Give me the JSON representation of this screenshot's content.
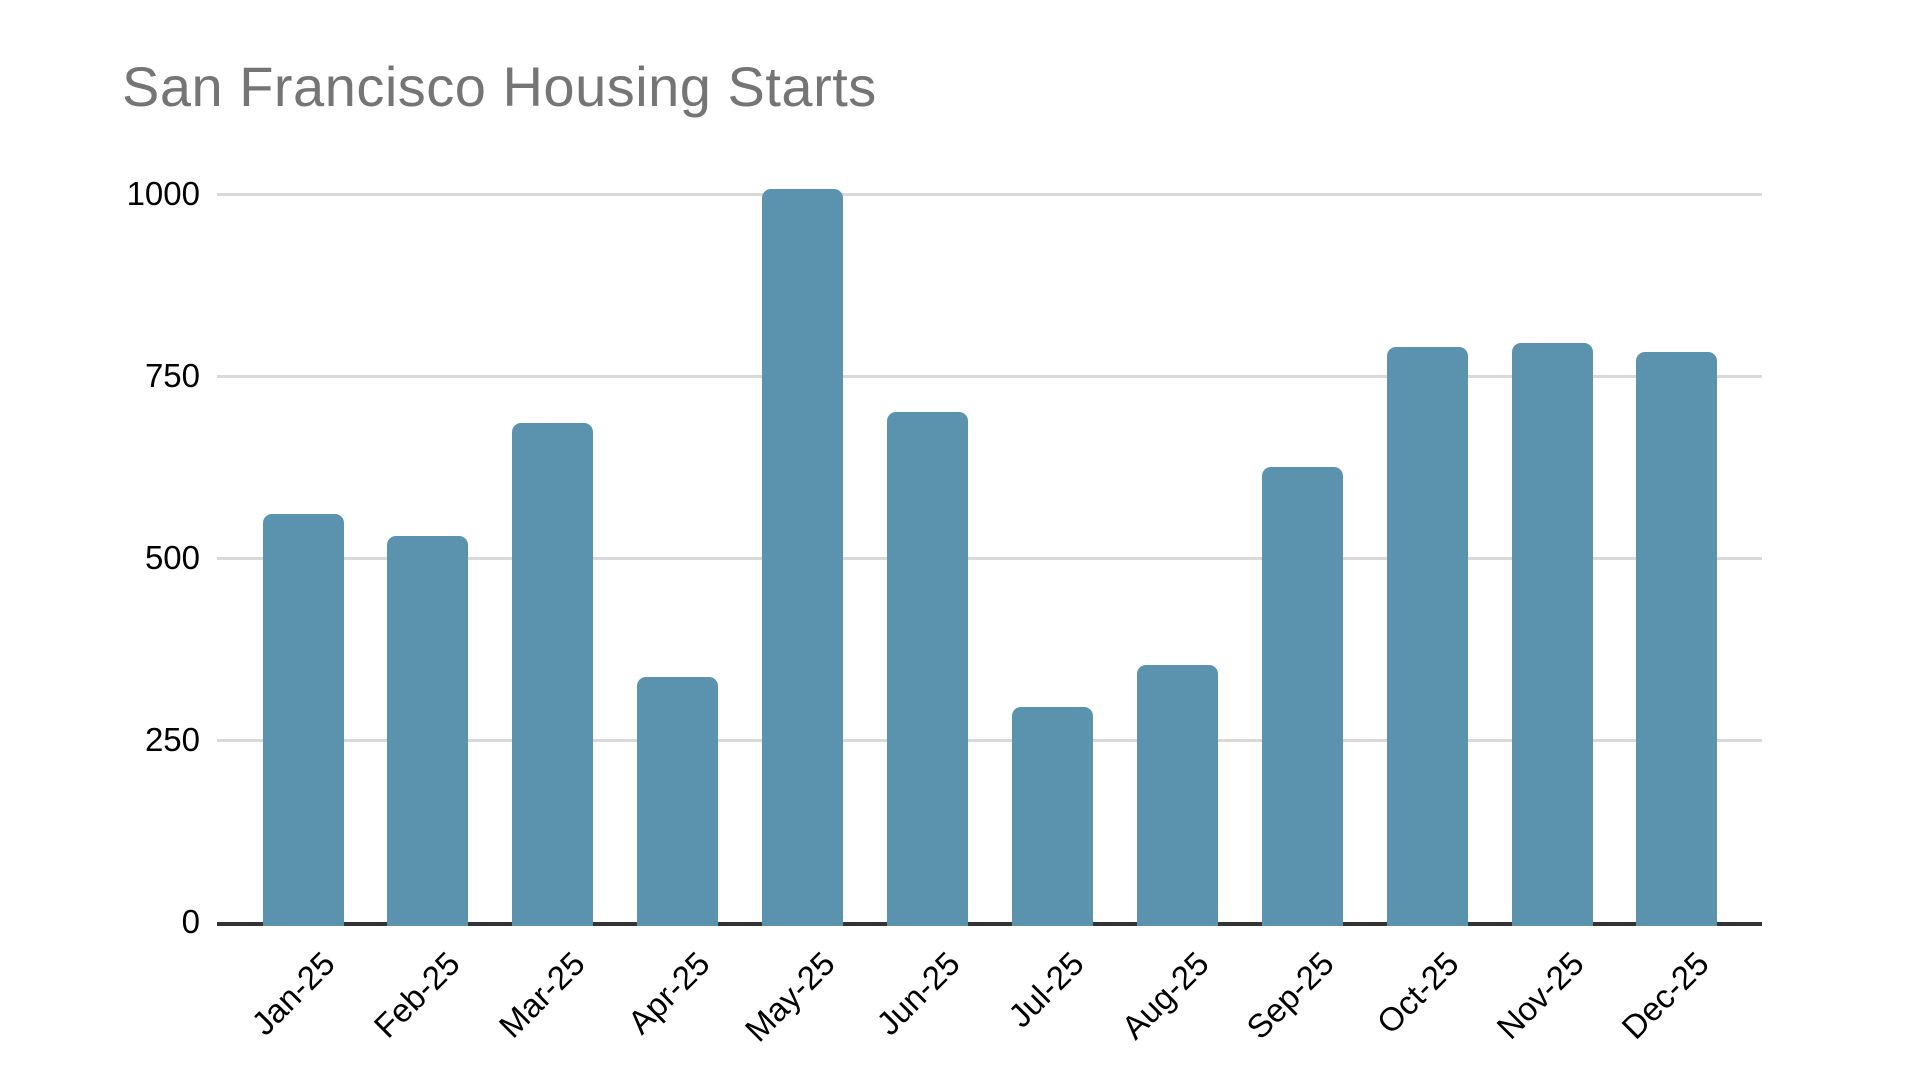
{
  "window": {
    "background": "#ffffff"
  },
  "chart": {
    "title": "San Francisco Housing Starts",
    "colors": {
      "title": "#757575",
      "bar": "#5b92ae",
      "gridline": "#d9d9d9",
      "axis_line": "#333333",
      "tick_label": "#000000",
      "background": "#ffffff"
    }
  },
  "chart_data": {
    "type": "bar",
    "title": "San Francisco Housing Starts",
    "categories": [
      "Jan-25",
      "Feb-25",
      "Mar-25",
      "Apr-25",
      "May-25",
      "Jun-25",
      "Jul-25",
      "Aug-25",
      "Sep-25",
      "Oct-25",
      "Nov-25",
      "Dec-25"
    ],
    "values": [
      560,
      530,
      686,
      337,
      1007,
      701,
      296,
      353,
      625,
      790,
      795,
      783
    ],
    "xlabel": "",
    "ylabel": "",
    "y_ticks": [
      0,
      250,
      500,
      750,
      1000
    ],
    "ylim": [
      0,
      1000
    ],
    "grid": true,
    "legend": false,
    "bar_color": "#5b92ae"
  }
}
